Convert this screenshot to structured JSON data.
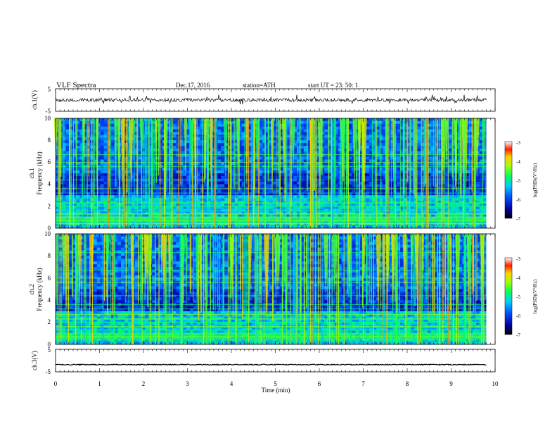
{
  "header": {
    "title": "VLF  Spectra",
    "date": "Dec.17, 2016",
    "station": "station=ATH",
    "start": "start  UT  =    23: 50: 1"
  },
  "chart_data": [
    {
      "type": "line",
      "ylabel": "ch.1(V)",
      "ylim": [
        -5,
        5
      ],
      "yticks": [
        "5",
        "-5"
      ],
      "xlim": [
        0,
        10
      ],
      "baseline": 0,
      "noise": 0.7,
      "x_end": 9.8
    },
    {
      "type": "heatmap",
      "ylabel": "Frequency (kHz)",
      "channel": "ch.1",
      "ylim": [
        0,
        10
      ],
      "yticks": [
        "0",
        "2",
        "4",
        "6",
        "8",
        "10"
      ],
      "xlim": [
        0,
        10
      ],
      "x_end": 9.8,
      "colorbar": {
        "label": "log(PSD)(V²/Hz)",
        "range": [
          -7,
          -3
        ],
        "ticks": [
          "-3",
          "-4",
          "-5",
          "-6",
          "-7"
        ]
      }
    },
    {
      "type": "heatmap",
      "ylabel": "Frequency (kHz)",
      "channel": "ch.2",
      "ylim": [
        0,
        10
      ],
      "yticks": [
        "0",
        "2",
        "4",
        "6",
        "8",
        "10"
      ],
      "xlim": [
        0,
        10
      ],
      "x_end": 9.8,
      "colorbar": {
        "label": "log(PSD)(V²/Hz)",
        "range": [
          -7,
          -3
        ],
        "ticks": [
          "-3",
          "-4",
          "-5",
          "-6",
          "-7"
        ]
      }
    },
    {
      "type": "line",
      "ylabel": "ch.3(V)",
      "ylim": [
        -5,
        5
      ],
      "yticks": [
        "5",
        "-5"
      ],
      "xlim": [
        0,
        10
      ],
      "baseline": -1.8,
      "noise": 0.2,
      "x_end": 9.8
    }
  ],
  "xaxis": {
    "label": "Time  (min)",
    "ticks": [
      "0",
      "1",
      "2",
      "3",
      "4",
      "5",
      "6",
      "7",
      "8",
      "9",
      "10"
    ]
  }
}
